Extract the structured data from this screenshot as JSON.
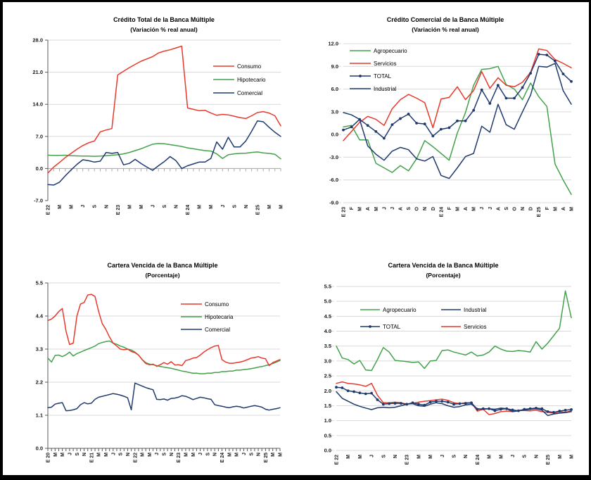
{
  "page": {
    "background": "#ffffff",
    "frame_color": "#000000",
    "grid_color": "#d9d9d9",
    "axis_color": "#595959",
    "zero_line_color": "#a6a6a6"
  },
  "charts": [
    {
      "id": "chart-credito-total",
      "title": "Crédito Total de la Banca Múltiple",
      "subtitle": "(Variación %  real anual)",
      "type": "line",
      "ylim": [
        -7,
        28
      ],
      "ytick_labels": [
        "28.0",
        "21.0",
        "14.0",
        "7.0",
        "0.0",
        "-7.0"
      ],
      "x_tick_every": 2,
      "x_tick_labels": [
        "E 22",
        "M",
        "M",
        "J",
        "S",
        "N",
        "E 23",
        "M",
        "M",
        "J",
        "S",
        "N",
        "E 24",
        "M",
        "M",
        "J",
        "S",
        "N",
        "E 25",
        "M",
        "M"
      ],
      "legend": [
        "Consumo",
        "Hipotecario",
        "Comercial"
      ],
      "series": [
        {
          "name": "Hipotecario",
          "color": "#44a14b",
          "marker": false,
          "values": [
            2.9,
            2.85,
            2.85,
            2.9,
            2.8,
            2.75,
            2.7,
            2.7,
            2.65,
            2.7,
            2.8,
            2.9,
            3.0,
            3.2,
            3.5,
            3.9,
            4.3,
            4.8,
            5.3,
            5.45,
            5.4,
            5.2,
            5.0,
            4.8,
            4.5,
            4.3,
            4.1,
            3.9,
            3.8,
            3.2,
            2.2,
            3.0,
            3.2,
            3.3,
            3.35,
            3.5,
            3.6,
            3.4,
            3.3,
            3.1,
            2.1
          ]
        },
        {
          "name": "Comercial",
          "color": "#1f3a6e",
          "marker": false,
          "values": [
            -3.5,
            -3.6,
            -3.0,
            -1.6,
            -0.3,
            0.9,
            1.9,
            1.7,
            1.4,
            1.6,
            3.5,
            3.3,
            3.5,
            0.8,
            1.1,
            2.0,
            1.1,
            0.3,
            -0.4,
            0.6,
            1.5,
            2.6,
            1.7,
            0.0,
            0.6,
            1.0,
            1.4,
            1.4,
            2.2,
            5.8,
            4.2,
            6.8,
            4.7,
            4.7,
            6.0,
            8.1,
            10.4,
            10.2,
            9.0,
            7.9,
            7.0
          ]
        },
        {
          "name": "Consumo",
          "color": "#e8392d",
          "marker": false,
          "values": [
            -1.0,
            0.3,
            1.3,
            2.4,
            3.3,
            4.2,
            5.0,
            5.6,
            6.0,
            8.0,
            8.4,
            8.7,
            20.4,
            21.2,
            22.0,
            22.7,
            23.4,
            23.9,
            24.4,
            25.2,
            25.6,
            25.9,
            26.3,
            26.7,
            13.2,
            12.9,
            12.6,
            12.7,
            12.1,
            11.6,
            11.8,
            11.7,
            11.4,
            11.1,
            10.9,
            11.5,
            12.2,
            12.4,
            12.1,
            11.5,
            9.3
          ]
        }
      ]
    },
    {
      "id": "chart-credito-comercial",
      "title": "Crédito Comercial de la Banca Múltiple",
      "subtitle": "(Variación % real anual)",
      "type": "line",
      "ylim": [
        -9,
        12
      ],
      "ytick_labels": [
        "12.0",
        "9.0",
        "6.0",
        "3.0",
        "0.0",
        "-3.0",
        "-6.0",
        "-9.0"
      ],
      "x_tick_every": 1,
      "x_tick_labels": [
        "E 23",
        "F",
        "M",
        "A",
        "M",
        "J",
        "J",
        "A",
        "S",
        "O",
        "N",
        "D",
        "E 24",
        "F",
        "M",
        "A",
        "M",
        "J",
        "J",
        "A",
        "S",
        "O",
        "N",
        "D",
        "E 25",
        "F",
        "M",
        "A",
        "M"
      ],
      "legend": [
        "Agropecuario",
        "Servicios",
        "TOTAL",
        "Industrial"
      ],
      "series": [
        {
          "name": "Agropecuario",
          "color": "#44a14b",
          "marker": false,
          "values": [
            1.0,
            1.2,
            -0.7,
            -0.7,
            -3.8,
            -4.4,
            -5.0,
            -4.1,
            -4.8,
            -3.2,
            -0.8,
            -1.6,
            -2.5,
            -3.4,
            0.2,
            2.9,
            6.5,
            8.6,
            8.7,
            9.0,
            6.6,
            6.0,
            4.6,
            6.8,
            5.0,
            3.7,
            -3.9,
            -6.0,
            -7.9
          ]
        },
        {
          "name": "Servicios",
          "color": "#e8392d",
          "marker": false,
          "values": [
            -0.8,
            0.4,
            1.6,
            2.4,
            2.0,
            1.2,
            3.4,
            4.6,
            5.3,
            4.8,
            4.2,
            0.9,
            4.7,
            4.9,
            6.3,
            4.6,
            5.8,
            8.3,
            6.1,
            7.5,
            6.5,
            6.3,
            6.9,
            8.2,
            11.3,
            11.1,
            9.9,
            9.4,
            8.8
          ]
        },
        {
          "name": "Industrial",
          "color": "#1f3a6e",
          "marker": false,
          "values": [
            2.9,
            2.6,
            2.0,
            -1.5,
            -2.6,
            -3.4,
            -2.2,
            -1.7,
            -2.0,
            -3.2,
            -3.5,
            -2.9,
            -5.4,
            -5.8,
            -4.4,
            -2.9,
            -2.5,
            1.1,
            0.3,
            4.0,
            1.3,
            0.7,
            3.0,
            5.2,
            9.0,
            8.9,
            9.4,
            5.8,
            4.0
          ]
        },
        {
          "name": "TOTAL",
          "color": "#1f3a6e",
          "marker": true,
          "values": [
            0.6,
            1.0,
            2.0,
            1.2,
            0.4,
            -0.5,
            1.3,
            2.1,
            2.7,
            1.5,
            1.4,
            -0.2,
            0.7,
            0.9,
            1.8,
            1.8,
            3.2,
            5.9,
            4.1,
            6.5,
            4.8,
            4.8,
            6.2,
            8.1,
            10.6,
            10.5,
            9.7,
            8.0,
            7.0
          ]
        }
      ]
    },
    {
      "id": "chart-cartera-vencida-banca",
      "title": "Cartera Vencida de la Banca Múltiple",
      "subtitle": "(Porcentaje)",
      "type": "line",
      "ylim": [
        0,
        5.5
      ],
      "ytick_labels": [
        "5.5",
        "4.4",
        "3.3",
        "2.2",
        "1.1",
        "0.0"
      ],
      "x_tick_every": 2,
      "x_tick_labels": [
        "E 20",
        "M",
        "M",
        "J",
        "S",
        "N",
        "E 21",
        "M",
        "M",
        "J",
        "S",
        "N",
        "E 22",
        "M",
        "M",
        "J",
        "S",
        "N",
        "E 23",
        "M",
        "M",
        "J",
        "S",
        "N",
        "E 24",
        "M",
        "M",
        "J",
        "S",
        "N",
        "E 25",
        "M",
        "M"
      ],
      "legend": [
        "Consumo",
        "Hipotecaria",
        "Comercial"
      ],
      "series": [
        {
          "name": "Hipotecaria",
          "color": "#44a14b",
          "marker": false,
          "values": [
            3.0,
            2.87,
            3.09,
            3.1,
            3.05,
            3.11,
            3.2,
            3.07,
            3.15,
            3.2,
            3.25,
            3.3,
            3.35,
            3.4,
            3.48,
            3.52,
            3.55,
            3.57,
            3.5,
            3.46,
            3.4,
            3.36,
            3.3,
            3.27,
            3.2,
            3.1,
            2.95,
            2.85,
            2.8,
            2.78,
            2.75,
            2.72,
            2.7,
            2.68,
            2.66,
            2.63,
            2.6,
            2.57,
            2.55,
            2.52,
            2.5,
            2.5,
            2.48,
            2.48,
            2.5,
            2.5,
            2.52,
            2.52,
            2.55,
            2.55,
            2.57,
            2.57,
            2.6,
            2.6,
            2.62,
            2.63,
            2.65,
            2.67,
            2.7,
            2.72,
            2.75,
            2.78,
            2.82,
            2.87,
            2.92
          ]
        },
        {
          "name": "Comercial",
          "color": "#1f3a6e",
          "marker": false,
          "values": [
            1.35,
            1.37,
            1.47,
            1.5,
            1.52,
            1.25,
            1.26,
            1.28,
            1.32,
            1.45,
            1.52,
            1.48,
            1.5,
            1.63,
            1.7,
            1.73,
            1.76,
            1.79,
            1.82,
            1.8,
            1.77,
            1.73,
            1.68,
            1.28,
            2.17,
            2.12,
            2.07,
            2.02,
            1.98,
            1.95,
            1.63,
            1.62,
            1.64,
            1.6,
            1.66,
            1.67,
            1.7,
            1.75,
            1.73,
            1.68,
            1.62,
            1.66,
            1.7,
            1.68,
            1.65,
            1.63,
            1.45,
            1.42,
            1.4,
            1.37,
            1.35,
            1.38,
            1.4,
            1.38,
            1.34,
            1.37,
            1.4,
            1.42,
            1.4,
            1.37,
            1.3,
            1.27,
            1.3,
            1.32,
            1.35
          ]
        },
        {
          "name": "Consumo",
          "color": "#e8392d",
          "marker": false,
          "values": [
            4.25,
            4.3,
            4.4,
            4.55,
            4.65,
            3.9,
            3.45,
            3.5,
            4.4,
            4.8,
            4.85,
            5.1,
            5.12,
            5.05,
            4.55,
            4.15,
            3.95,
            3.7,
            3.5,
            3.4,
            3.3,
            3.28,
            3.3,
            3.22,
            3.18,
            3.1,
            2.95,
            2.82,
            2.78,
            2.8,
            2.73,
            2.78,
            2.85,
            2.8,
            2.88,
            2.77,
            2.78,
            2.75,
            2.92,
            2.95,
            3.0,
            3.02,
            3.1,
            3.2,
            3.28,
            3.35,
            3.4,
            3.42,
            2.95,
            2.87,
            2.83,
            2.83,
            2.85,
            2.87,
            2.9,
            2.95,
            3.0,
            3.02,
            3.05,
            3.0,
            2.98,
            2.75,
            2.85,
            2.9,
            2.95
          ]
        }
      ]
    },
    {
      "id": "chart-cartera-vencida-comercial",
      "title": "Cartera Vencida de la Banca Múltiple",
      "subtitle": "(Porcentaje)",
      "type": "line",
      "ylim": [
        0,
        5.5
      ],
      "ytick_labels": [
        "5.5",
        "5.0",
        "4.5",
        "4.0",
        "3.5",
        "3.0",
        "2.5",
        "2.0",
        "1.5",
        "1.0",
        "0.5",
        "0.0"
      ],
      "x_tick_every": 2,
      "x_tick_labels": [
        "E 22",
        "M",
        "M",
        "J",
        "S",
        "N",
        "E 23",
        "M",
        "M",
        "J",
        "S",
        "N",
        "E 24",
        "M",
        "M",
        "J",
        "S",
        "N",
        "E 25",
        "M",
        "M"
      ],
      "legend": [
        "Agropecuario",
        "Industrial",
        "TOTAL",
        "Servicios"
      ],
      "series": [
        {
          "name": "Agropecuario",
          "color": "#44a14b",
          "marker": false,
          "values": [
            3.5,
            3.1,
            3.05,
            2.9,
            3.02,
            2.7,
            2.68,
            3.05,
            3.45,
            3.3,
            3.02,
            3.0,
            2.98,
            2.95,
            2.97,
            2.75,
            3.0,
            3.02,
            3.35,
            3.37,
            3.3,
            3.25,
            3.2,
            3.3,
            3.17,
            3.2,
            3.3,
            3.5,
            3.4,
            3.33,
            3.32,
            3.35,
            3.33,
            3.3,
            3.65,
            3.4,
            3.6,
            3.85,
            4.1,
            5.35,
            4.45
          ]
        },
        {
          "name": "Servicios",
          "color": "#e8392d",
          "marker": false,
          "values": [
            2.25,
            2.3,
            2.25,
            2.23,
            2.2,
            2.15,
            2.25,
            1.85,
            1.6,
            1.6,
            1.62,
            1.6,
            1.55,
            1.58,
            1.62,
            1.65,
            1.67,
            1.7,
            1.72,
            1.68,
            1.6,
            1.57,
            1.6,
            1.6,
            1.32,
            1.38,
            1.2,
            1.24,
            1.3,
            1.32,
            1.3,
            1.35,
            1.34,
            1.33,
            1.35,
            1.3,
            1.28,
            1.25,
            1.3,
            1.28,
            1.33
          ]
        },
        {
          "name": "Industrial",
          "color": "#1f3a6e",
          "marker": false,
          "values": [
            1.97,
            1.75,
            1.65,
            1.55,
            1.48,
            1.42,
            1.37,
            1.43,
            1.45,
            1.43,
            1.45,
            1.5,
            1.55,
            1.57,
            1.5,
            1.48,
            1.55,
            1.6,
            1.57,
            1.5,
            1.45,
            1.47,
            1.53,
            1.55,
            1.4,
            1.38,
            1.4,
            1.38,
            1.42,
            1.4,
            1.3,
            1.33,
            1.35,
            1.38,
            1.4,
            1.35,
            1.17,
            1.22,
            1.25,
            1.27,
            1.3
          ]
        },
        {
          "name": "TOTAL",
          "color": "#1f3a6e",
          "marker": true,
          "values": [
            2.12,
            2.1,
            2.0,
            1.97,
            1.93,
            1.9,
            1.92,
            1.7,
            1.55,
            1.57,
            1.58,
            1.58,
            1.55,
            1.6,
            1.55,
            1.52,
            1.62,
            1.65,
            1.65,
            1.62,
            1.55,
            1.57,
            1.58,
            1.6,
            1.38,
            1.4,
            1.4,
            1.33,
            1.38,
            1.4,
            1.36,
            1.33,
            1.38,
            1.4,
            1.42,
            1.4,
            1.3,
            1.28,
            1.32,
            1.35,
            1.37
          ]
        }
      ]
    }
  ],
  "chart_data": [
    {
      "type": "line",
      "ref": "chart-credito-total"
    },
    {
      "type": "line",
      "ref": "chart-credito-comercial"
    },
    {
      "type": "line",
      "ref": "chart-cartera-vencida-banca"
    },
    {
      "type": "line",
      "ref": "chart-cartera-vencida-comercial"
    }
  ]
}
